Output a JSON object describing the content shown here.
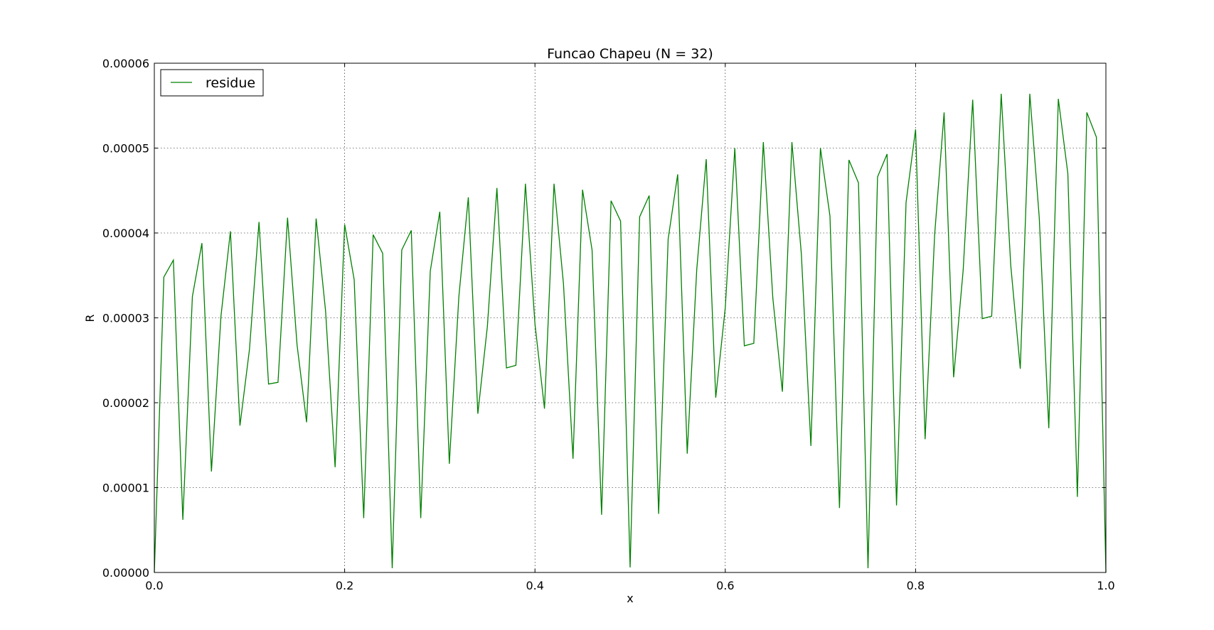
{
  "chart_data": {
    "type": "line",
    "title": "Funcao Chapeu (N = 32)",
    "xlabel": "x",
    "ylabel": "R",
    "xlim": [
      0.0,
      1.0
    ],
    "ylim": [
      0.0,
      6e-05
    ],
    "xticks": [
      0.0,
      0.2,
      0.4,
      0.6,
      0.8,
      1.0
    ],
    "xtick_labels": [
      "0.0",
      "0.2",
      "0.4",
      "0.6",
      "0.8",
      "1.0"
    ],
    "yticks": [
      0,
      1e-05,
      2e-05,
      3e-05,
      4e-05,
      5e-05,
      6e-05
    ],
    "ytick_labels": [
      "0.00000",
      "0.00001",
      "0.00002",
      "0.00003",
      "0.00004",
      "0.00005",
      "0.00006"
    ],
    "grid": true,
    "legend_position": "top-left",
    "series": [
      {
        "name": "residue",
        "color": "#008000",
        "x": [
          0.0,
          0.01,
          0.02,
          0.03,
          0.04,
          0.05,
          0.06,
          0.07,
          0.08,
          0.09,
          0.1,
          0.11,
          0.12,
          0.13,
          0.14,
          0.15,
          0.16,
          0.17,
          0.18,
          0.19,
          0.2,
          0.21,
          0.22,
          0.23,
          0.24,
          0.25,
          0.26,
          0.27,
          0.28,
          0.29,
          0.3,
          0.31,
          0.32,
          0.33,
          0.34,
          0.35,
          0.36,
          0.37,
          0.38,
          0.39,
          0.4,
          0.41,
          0.42,
          0.43,
          0.44,
          0.45,
          0.46,
          0.47,
          0.48,
          0.49,
          0.5,
          0.51,
          0.52,
          0.53,
          0.54,
          0.55,
          0.56,
          0.57,
          0.58,
          0.59,
          0.6,
          0.61,
          0.62,
          0.63,
          0.64,
          0.65,
          0.66,
          0.67,
          0.68,
          0.69,
          0.7,
          0.71,
          0.72,
          0.73,
          0.74,
          0.75,
          0.76,
          0.77,
          0.78,
          0.79,
          0.8,
          0.81,
          0.82,
          0.83,
          0.84,
          0.85,
          0.86,
          0.87,
          0.88,
          0.89,
          0.9,
          0.91,
          0.92,
          0.93,
          0.94,
          0.95,
          0.96,
          0.97,
          0.98,
          0.99,
          1.0
        ],
        "y": [
          0.0,
          3.48e-05,
          3.68e-05,
          6.2e-06,
          3.25e-05,
          3.88e-05,
          1.19e-05,
          3.02e-05,
          4.02e-05,
          1.73e-05,
          2.63e-05,
          4.13e-05,
          2.22e-05,
          2.24e-05,
          4.18e-05,
          2.68e-05,
          1.77e-05,
          4.17e-05,
          3.08e-05,
          1.24e-05,
          4.1e-05,
          3.45e-05,
          6.4e-06,
          3.98e-05,
          3.76e-05,
          5e-07,
          3.8e-05,
          4.03e-05,
          6.4e-06,
          3.55e-05,
          4.25e-05,
          1.28e-05,
          3.25e-05,
          4.42e-05,
          1.87e-05,
          2.9e-05,
          4.53e-05,
          2.41e-05,
          2.44e-05,
          4.58e-05,
          2.93e-05,
          1.93e-05,
          4.58e-05,
          3.4e-05,
          1.34e-05,
          4.51e-05,
          3.8e-05,
          6.8e-06,
          4.38e-05,
          4.14e-05,
          6e-07,
          4.19e-05,
          4.44e-05,
          6.9e-06,
          3.93e-05,
          4.69e-05,
          1.4e-05,
          3.57e-05,
          4.87e-05,
          2.06e-05,
          3.12e-05,
          5e-05,
          2.67e-05,
          2.7e-05,
          5.07e-05,
          3.23e-05,
          2.13e-05,
          5.07e-05,
          3.75e-05,
          1.49e-05,
          5e-05,
          4.2e-05,
          7.6e-06,
          4.86e-05,
          4.59e-05,
          5e-07,
          4.66e-05,
          4.93e-05,
          7.9e-06,
          4.36e-05,
          5.22e-05,
          1.57e-05,
          3.98e-05,
          5.42e-05,
          2.3e-05,
          3.56e-05,
          5.57e-05,
          2.99e-05,
          3.02e-05,
          5.64e-05,
          3.62e-05,
          2.4e-05,
          5.64e-05,
          4.18e-05,
          1.7e-05,
          5.58e-05,
          4.7e-05,
          8.9e-06,
          5.42e-05,
          5.13e-05,
          0.0
        ]
      }
    ]
  }
}
